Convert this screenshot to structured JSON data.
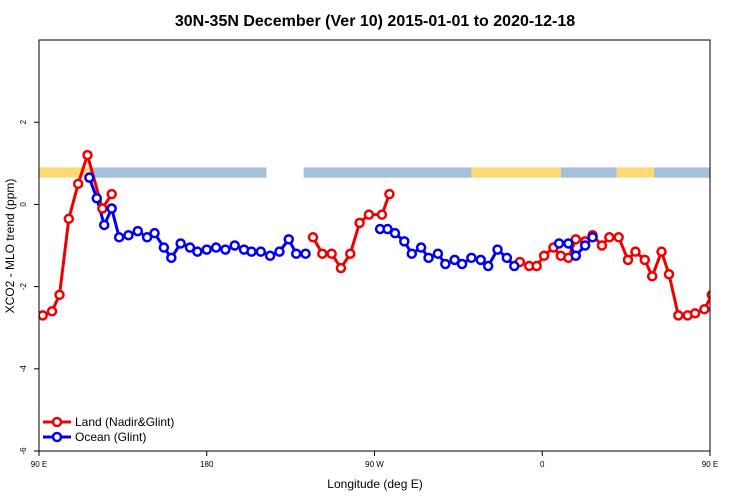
{
  "chart_data": {
    "type": "line",
    "title": "30N-35N December (Ver 10)   2015-01-01 to 2020-12-18",
    "xlabel": "Longitude (deg E)",
    "ylabel": "XCO2 - MLO trend (ppm)",
    "xlim": [
      90,
      450
    ],
    "ylim": [
      -6,
      4
    ],
    "x_ticks": [
      {
        "value": 90,
        "label": "90 E"
      },
      {
        "value": 180,
        "label": "180"
      },
      {
        "value": 270,
        "label": "90 W"
      },
      {
        "value": 360,
        "label": "0"
      },
      {
        "value": 450,
        "label": "90 E"
      },
      {
        "value": 540,
        "label": "180"
      }
    ],
    "y_ticks": [
      {
        "value": -6,
        "label": "-6"
      },
      {
        "value": -4,
        "label": "-4"
      },
      {
        "value": -2,
        "label": "-2"
      },
      {
        "value": 0,
        "label": "0"
      },
      {
        "value": 2,
        "label": "2"
      }
    ],
    "grid": false,
    "legend_position": "bottom-left",
    "land_band": {
      "y_range": [
        0.65,
        0.9
      ],
      "colors": {
        "land": "#ffd878",
        "ocean": "#a7bfdd"
      },
      "land_segments": [
        [
          90,
          118
        ],
        [
          322,
          370
        ],
        [
          400,
          420
        ],
        [
          526,
          540
        ]
      ],
      "ocean_segments": [
        [
          118,
          212
        ],
        [
          232,
          322
        ],
        [
          370,
          400
        ],
        [
          420,
          526
        ],
        [
          540,
          555
        ]
      ]
    },
    "series": [
      {
        "name": "Land (Nadir&Glint)",
        "color": "#ee0000",
        "points": [
          [
            92,
            -2.7
          ],
          [
            97,
            -2.6
          ],
          [
            101,
            -2.2
          ],
          [
            106,
            -0.35
          ],
          [
            111,
            0.5
          ],
          [
            116,
            1.2
          ],
          [
            124,
            -0.1
          ],
          [
            129,
            0.25
          ],
          null,
          [
            237,
            -0.8
          ],
          [
            242,
            -1.2
          ],
          [
            247,
            -1.2
          ],
          [
            252,
            -1.55
          ],
          [
            257,
            -1.2
          ],
          [
            262,
            -0.45
          ],
          [
            267,
            -0.25
          ],
          [
            274,
            -0.25
          ],
          [
            278,
            0.25
          ],
          null,
          [
            348,
            -1.4
          ],
          [
            353,
            -1.5
          ],
          [
            357,
            -1.5
          ],
          [
            361,
            -1.25
          ],
          [
            366,
            -1.05
          ],
          [
            370,
            -1.25
          ],
          [
            374,
            -1.3
          ],
          [
            378,
            -0.85
          ],
          [
            383,
            -0.9
          ],
          [
            387,
            -0.75
          ],
          [
            392,
            -1.0
          ],
          [
            396,
            -0.8
          ],
          [
            401,
            -0.8
          ],
          [
            406,
            -1.35
          ],
          [
            410,
            -1.15
          ],
          [
            415,
            -1.35
          ],
          [
            419,
            -1.75
          ],
          [
            424,
            -1.15
          ],
          [
            428,
            -1.7
          ],
          [
            433,
            -2.7
          ],
          [
            438,
            -2.7
          ],
          [
            442,
            -2.65
          ],
          [
            447,
            -2.55
          ],
          [
            451,
            -2.2
          ],
          [
            456,
            -0.35
          ],
          [
            461,
            0.5
          ],
          [
            466,
            1.2
          ],
          [
            474,
            -0.1
          ],
          [
            479,
            0.25
          ]
        ]
      },
      {
        "name": "Ocean (Glint)",
        "color": "#0000ee",
        "points": [
          [
            117,
            0.65
          ],
          [
            121,
            0.15
          ],
          [
            125,
            -0.5
          ],
          [
            129,
            -0.1
          ],
          [
            133,
            -0.8
          ],
          [
            138,
            -0.75
          ],
          [
            143,
            -0.65
          ],
          [
            148,
            -0.8
          ],
          [
            152,
            -0.7
          ],
          [
            157,
            -1.05
          ],
          [
            161,
            -1.3
          ],
          [
            166,
            -0.95
          ],
          [
            171,
            -1.05
          ],
          [
            175,
            -1.15
          ],
          [
            180,
            -1.1
          ],
          [
            185,
            -1.05
          ],
          [
            190,
            -1.1
          ],
          [
            195,
            -1.0
          ],
          [
            200,
            -1.1
          ],
          [
            204,
            -1.15
          ],
          [
            209,
            -1.15
          ],
          [
            214,
            -1.25
          ],
          [
            219,
            -1.15
          ],
          [
            224,
            -0.85
          ],
          [
            228,
            -1.2
          ],
          [
            233,
            -1.2
          ],
          null,
          [
            273,
            -0.6
          ],
          [
            277,
            -0.6
          ],
          [
            281,
            -0.7
          ],
          [
            286,
            -0.9
          ],
          [
            290,
            -1.2
          ],
          [
            295,
            -1.05
          ],
          [
            299,
            -1.3
          ],
          [
            304,
            -1.2
          ],
          [
            308,
            -1.45
          ],
          [
            313,
            -1.35
          ],
          [
            317,
            -1.45
          ],
          [
            322,
            -1.3
          ],
          [
            327,
            -1.35
          ],
          [
            331,
            -1.5
          ],
          [
            336,
            -1.1
          ],
          [
            341,
            -1.3
          ],
          [
            345,
            -1.5
          ],
          null,
          [
            369,
            -0.95
          ],
          [
            374,
            -0.95
          ],
          [
            378,
            -1.25
          ],
          [
            383,
            -1.0
          ],
          [
            387,
            -0.8
          ],
          null,
          [
            467,
            0.65
          ],
          [
            471,
            0.15
          ],
          [
            475,
            -0.5
          ],
          [
            479,
            -0.1
          ],
          [
            483,
            -0.8
          ],
          [
            488,
            -0.75
          ],
          [
            493,
            -0.65
          ],
          [
            498,
            -0.8
          ],
          [
            502,
            -0.7
          ],
          [
            507,
            -1.05
          ],
          [
            511,
            -1.3
          ],
          [
            516,
            -0.95
          ]
        ]
      }
    ]
  }
}
